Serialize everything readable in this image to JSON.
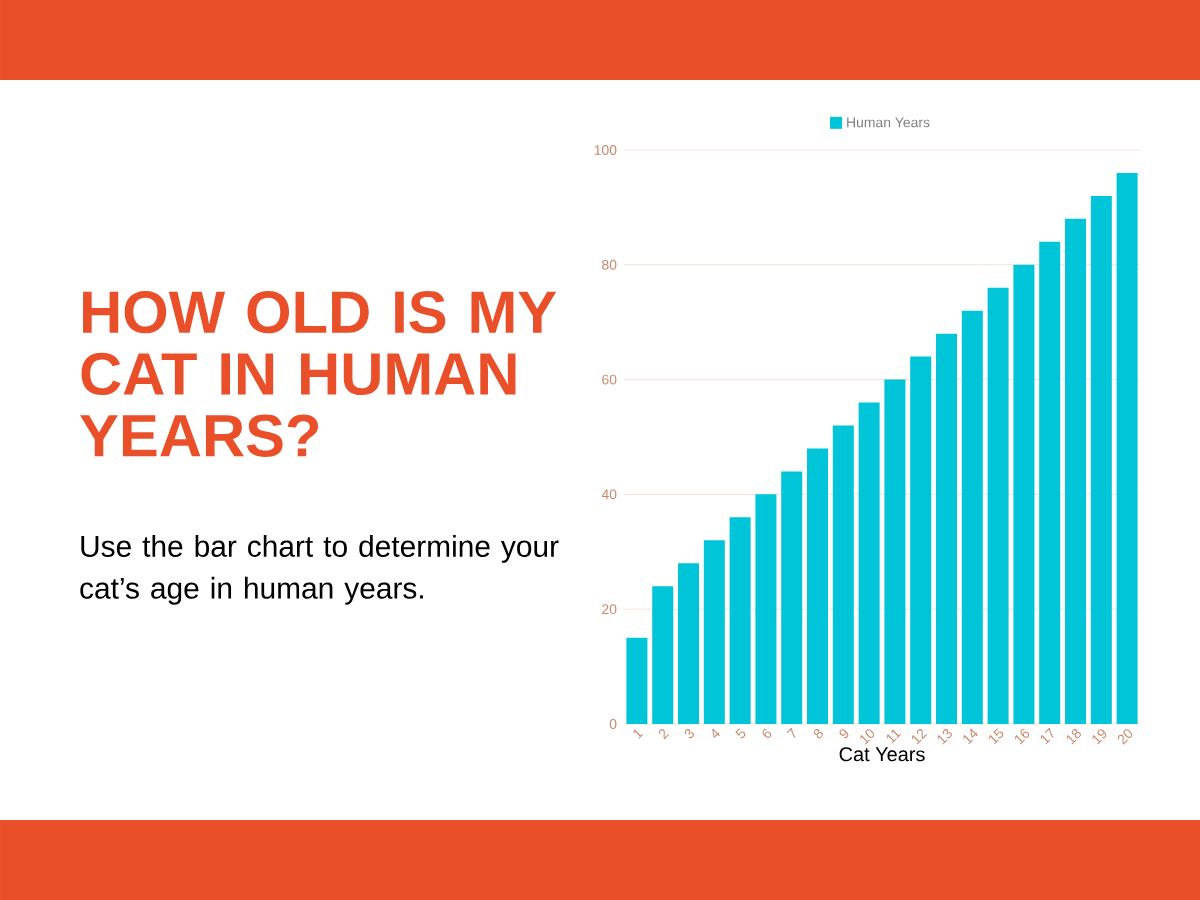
{
  "chart_data": {
    "type": "bar",
    "title": "HOW OLD IS MY CAT IN HUMAN YEARS?",
    "subtitle": "Use the bar chart to determine your cat’s age in human years.",
    "xlabel": "Cat Years",
    "categories": [
      "1",
      "2",
      "3",
      "4",
      "5",
      "6",
      "7",
      "8",
      "9",
      "10",
      "11",
      "12",
      "13",
      "14",
      "15",
      "16",
      "17",
      "18",
      "19",
      "20"
    ],
    "series": [
      {
        "name": "Human Years",
        "color": "#00c4d8",
        "values": [
          15,
          24,
          28,
          32,
          36,
          40,
          44,
          48,
          52,
          56,
          60,
          64,
          68,
          72,
          76,
          80,
          84,
          88,
          92,
          96
        ]
      }
    ],
    "ylim": [
      0,
      100
    ],
    "yticks": [
      0,
      20,
      40,
      60,
      80,
      100
    ],
    "grid": "y",
    "legend": "top"
  }
}
